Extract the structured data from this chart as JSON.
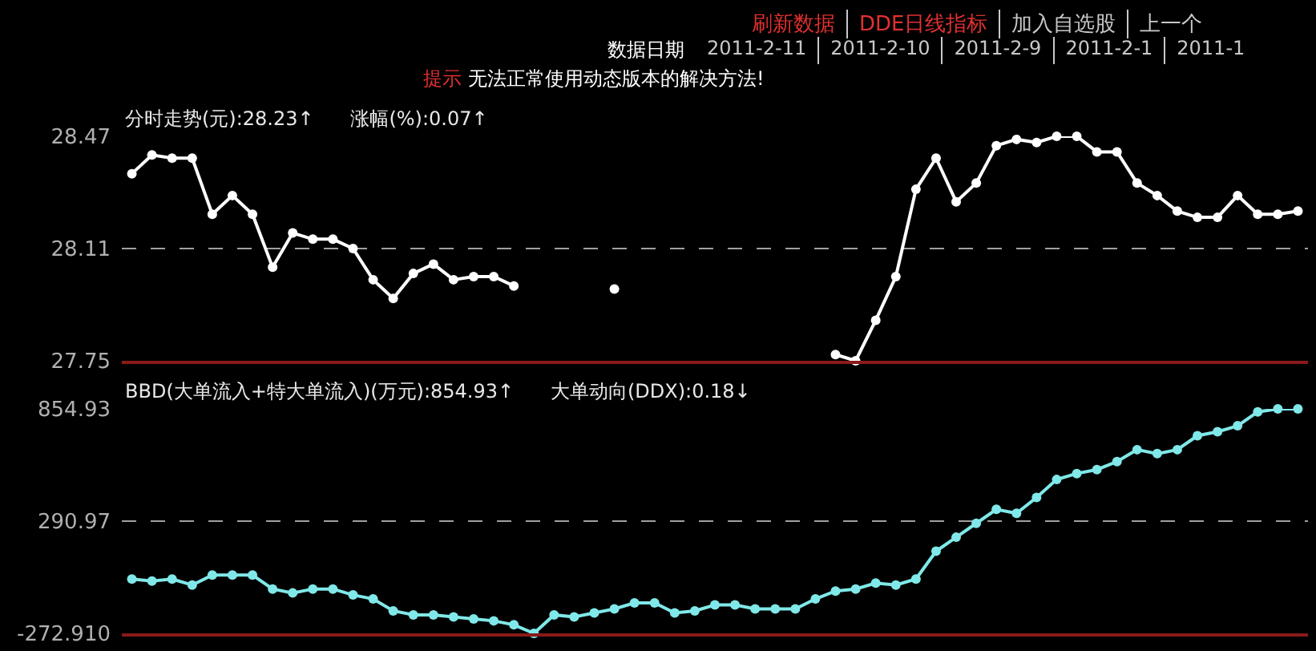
{
  "chart_data": [
    {
      "type": "line",
      "title": "分时走势(元):28.23↑",
      "subtitle": "涨幅(%):0.07↑",
      "annotations": [
        "刷新数据",
        "DDE日线指标",
        "加入自选股",
        "上一个",
        "数据日期",
        "2011-2-11",
        "2011-2-10",
        "2011-2-9",
        "2011-2-1",
        "2011-1",
        "提示",
        "无法正常使用动态版本的解决方法!"
      ],
      "categories": [
        null,
        null,
        null,
        null,
        null,
        null,
        null,
        null,
        null,
        null,
        null,
        null,
        null,
        null,
        null,
        null,
        null,
        null,
        null,
        null,
        null,
        null,
        null,
        null,
        null,
        null,
        null,
        null,
        null,
        null,
        null,
        null,
        null,
        null,
        null,
        null,
        null,
        null,
        null,
        null,
        null,
        null,
        null,
        null,
        null,
        null,
        null,
        null,
        null,
        null,
        null,
        null,
        null,
        null,
        null,
        null,
        null,
        null,
        null
      ],
      "series": [
        {
          "color": "#ffffff",
          "values": [
            28.35,
            28.41,
            28.4,
            28.4,
            28.22,
            28.28,
            28.22,
            28.05,
            28.16,
            28.14,
            28.14,
            28.11,
            28.01,
            27.95,
            28.03,
            28.06,
            28.01,
            28.02,
            28.02,
            27.99,
            null,
            null,
            null,
            null,
            27.98,
            null,
            null,
            null,
            null,
            null,
            null,
            null,
            null,
            null,
            null,
            27.77,
            27.75,
            27.88,
            28.02,
            28.3,
            28.4,
            28.26,
            28.32,
            28.44,
            28.46,
            28.45,
            28.47,
            28.47,
            28.42,
            28.42,
            28.32,
            28.28,
            28.23,
            28.21,
            28.21,
            28.28,
            28.22,
            28.22,
            28.23
          ]
        }
      ],
      "ylim": [
        27.75,
        28.47
      ],
      "yticks": [
        27.75,
        28.11,
        28.47
      ],
      "grid": "y",
      "marker": "circle",
      "tick_labels": "y"
    },
    {
      "type": "line",
      "title": "BBD(大单流入+特大单流入)(万元):854.93↑",
      "subtitle": "大单动向(DDX):0.18↓",
      "categories": [
        null,
        null,
        null,
        null,
        null,
        null,
        null,
        null,
        null,
        null,
        null,
        null,
        null,
        null,
        null,
        null,
        null,
        null,
        null,
        null,
        null,
        null,
        null,
        null,
        null,
        null,
        null,
        null,
        null,
        null,
        null,
        null,
        null,
        null,
        null,
        null,
        null,
        null,
        null,
        null,
        null,
        null,
        null,
        null,
        null,
        null,
        null,
        null,
        null,
        null,
        null,
        null,
        null,
        null,
        null,
        null,
        null,
        null,
        null
      ],
      "series": [
        {
          "color": "#80e8e8",
          "values": [
            0,
            -10,
            0,
            -30,
            20,
            20,
            20,
            -50,
            -70,
            -50,
            -50,
            -80,
            -100,
            -160,
            -180,
            -180,
            -190,
            -200,
            -210,
            -230,
            -272.91,
            -180,
            -190,
            -170,
            -150,
            -120,
            -120,
            -170,
            -160,
            -130,
            -130,
            -150,
            -150,
            -150,
            -100,
            -60,
            -50,
            -20,
            -30,
            0,
            140,
            210,
            280,
            350,
            330,
            410,
            500,
            530,
            550,
            590,
            650,
            630,
            650,
            720,
            740,
            770,
            840,
            854.93,
            854.93
          ]
        }
      ],
      "ylim": [
        -272.91,
        854.93
      ],
      "yticks": [
        {
          "value": -272.91,
          "label": "-272.910"
        },
        290.97,
        854.93
      ],
      "grid": "y",
      "marker": "circle",
      "tick_labels": "y"
    }
  ]
}
